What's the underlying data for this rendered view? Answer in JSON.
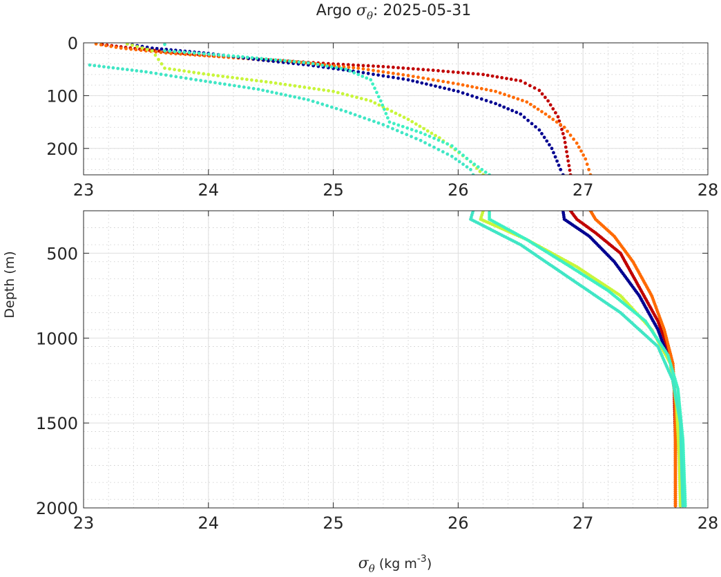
{
  "chart_data": {
    "type": "scatter",
    "title": {
      "prefix": "Argo ",
      "symbol": "σ",
      "subscript": "θ",
      "suffix": ": 2025-05-31"
    },
    "xlabel": {
      "symbol": "σ",
      "subscript": "θ",
      "units_pre": " (kg m",
      "units_sup": "-3",
      "units_post": ")"
    },
    "ylabel": "Depth (m)",
    "panels": [
      {
        "id": "upper",
        "ylim": [
          0,
          250
        ],
        "yticks": [
          0,
          100,
          200
        ],
        "xlim": [
          23,
          28
        ],
        "xticks": [
          23,
          24,
          25,
          26,
          27,
          28
        ],
        "grid": true,
        "minor_grid": true
      },
      {
        "id": "lower",
        "ylim": [
          250,
          2000
        ],
        "yticks": [
          500,
          1000,
          1500,
          2000
        ],
        "xlim": [
          23,
          28
        ],
        "xticks": [
          23,
          24,
          25,
          26,
          27,
          28
        ],
        "grid": true,
        "minor_grid": true
      }
    ],
    "series": [
      {
        "name": "profile-dark-red",
        "color": "#c00000",
        "points": [
          [
            23.15,
            3
          ],
          [
            23.45,
            12
          ],
          [
            23.8,
            20
          ],
          [
            24.2,
            28
          ],
          [
            24.6,
            34
          ],
          [
            25.0,
            40
          ],
          [
            25.4,
            45
          ],
          [
            25.8,
            52
          ],
          [
            26.2,
            60
          ],
          [
            26.5,
            72
          ],
          [
            26.65,
            90
          ],
          [
            26.72,
            110
          ],
          [
            26.8,
            140
          ],
          [
            26.85,
            180
          ],
          [
            26.9,
            250
          ],
          [
            26.95,
            300
          ],
          [
            27.1,
            380
          ],
          [
            27.3,
            500
          ],
          [
            27.45,
            700
          ],
          [
            27.6,
            900
          ],
          [
            27.7,
            1100
          ],
          [
            27.73,
            1300
          ],
          [
            27.74,
            1600
          ],
          [
            27.74,
            2000
          ]
        ]
      },
      {
        "name": "profile-orange",
        "color": "#ff6a00",
        "points": [
          [
            23.1,
            2
          ],
          [
            23.3,
            10
          ],
          [
            23.7,
            20
          ],
          [
            24.2,
            28
          ],
          [
            24.7,
            36
          ],
          [
            25.2,
            48
          ],
          [
            25.6,
            62
          ],
          [
            26.0,
            78
          ],
          [
            26.3,
            92
          ],
          [
            26.55,
            112
          ],
          [
            26.7,
            135
          ],
          [
            26.85,
            160
          ],
          [
            26.95,
            190
          ],
          [
            27.02,
            220
          ],
          [
            27.06,
            250
          ],
          [
            27.1,
            300
          ],
          [
            27.25,
            400
          ],
          [
            27.4,
            550
          ],
          [
            27.55,
            750
          ],
          [
            27.65,
            950
          ],
          [
            27.72,
            1150
          ],
          [
            27.74,
            1400
          ],
          [
            27.74,
            1700
          ],
          [
            27.74,
            2000
          ]
        ]
      },
      {
        "name": "profile-navy",
        "color": "#000090",
        "points": [
          [
            23.35,
            2
          ],
          [
            23.55,
            10
          ],
          [
            24.0,
            20
          ],
          [
            24.4,
            32
          ],
          [
            24.8,
            42
          ],
          [
            25.2,
            55
          ],
          [
            25.6,
            70
          ],
          [
            26.0,
            92
          ],
          [
            26.3,
            115
          ],
          [
            26.5,
            135
          ],
          [
            26.65,
            165
          ],
          [
            26.75,
            200
          ],
          [
            26.82,
            240
          ],
          [
            26.84,
            250
          ],
          [
            26.85,
            300
          ],
          [
            27.05,
            400
          ],
          [
            27.25,
            550
          ],
          [
            27.45,
            750
          ],
          [
            27.6,
            950
          ],
          [
            27.7,
            1150
          ],
          [
            27.75,
            1400
          ],
          [
            27.78,
            1700
          ],
          [
            27.78,
            2000
          ]
        ]
      },
      {
        "name": "profile-yellow-green",
        "color": "#c8f53a",
        "points": [
          [
            23.35,
            2
          ],
          [
            23.55,
            15
          ],
          [
            23.65,
            48
          ],
          [
            24.0,
            60
          ],
          [
            24.5,
            75
          ],
          [
            25.0,
            92
          ],
          [
            25.3,
            110
          ],
          [
            25.6,
            145
          ],
          [
            25.85,
            180
          ],
          [
            26.1,
            225
          ],
          [
            26.2,
            250
          ],
          [
            26.18,
            300
          ],
          [
            26.55,
            420
          ],
          [
            26.95,
            580
          ],
          [
            27.3,
            750
          ],
          [
            27.55,
            950
          ],
          [
            27.7,
            1150
          ],
          [
            27.75,
            1400
          ],
          [
            27.77,
            1700
          ],
          [
            27.78,
            2000
          ]
        ]
      },
      {
        "name": "profile-aqua-1",
        "color": "#3ff0c3",
        "points": [
          [
            23.65,
            3
          ],
          [
            23.65,
            15
          ],
          [
            24.2,
            25
          ],
          [
            24.8,
            38
          ],
          [
            25.1,
            50
          ],
          [
            25.3,
            70
          ],
          [
            25.38,
            110
          ],
          [
            25.45,
            150
          ],
          [
            25.7,
            170
          ],
          [
            25.95,
            195
          ],
          [
            26.1,
            225
          ],
          [
            26.25,
            250
          ],
          [
            26.25,
            300
          ],
          [
            26.55,
            420
          ],
          [
            26.9,
            580
          ],
          [
            27.2,
            720
          ],
          [
            27.5,
            900
          ],
          [
            27.68,
            1100
          ],
          [
            27.76,
            1300
          ],
          [
            27.8,
            1600
          ],
          [
            27.82,
            2000
          ]
        ]
      },
      {
        "name": "profile-aqua-2",
        "color": "#40e6c5",
        "points": [
          [
            23.05,
            42
          ],
          [
            23.5,
            55
          ],
          [
            23.9,
            70
          ],
          [
            24.4,
            88
          ],
          [
            24.8,
            108
          ],
          [
            25.1,
            130
          ],
          [
            25.4,
            155
          ],
          [
            25.7,
            185
          ],
          [
            25.95,
            215
          ],
          [
            26.1,
            240
          ],
          [
            26.12,
            250
          ],
          [
            26.1,
            300
          ],
          [
            26.5,
            450
          ],
          [
            26.9,
            650
          ],
          [
            27.3,
            850
          ],
          [
            27.6,
            1050
          ],
          [
            27.72,
            1250
          ],
          [
            27.78,
            1500
          ],
          [
            27.8,
            2000
          ]
        ]
      }
    ]
  }
}
